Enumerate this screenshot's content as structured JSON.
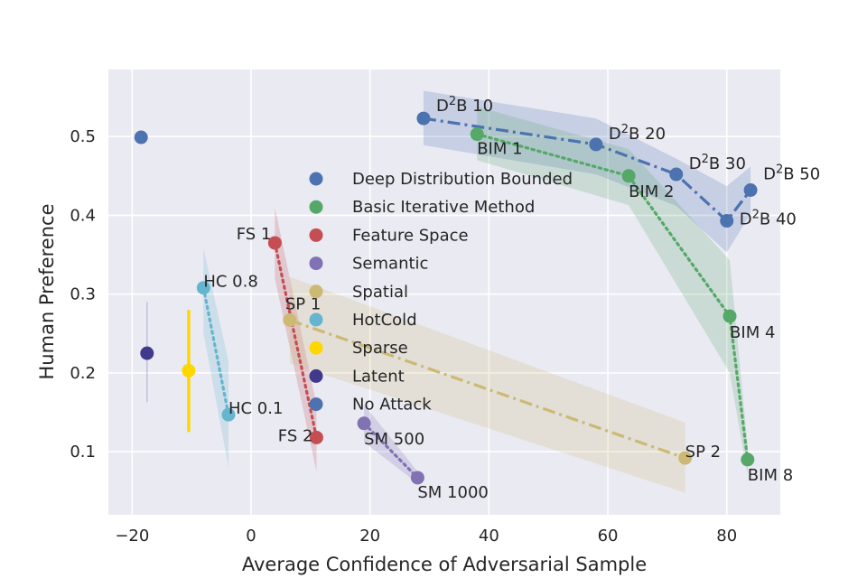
{
  "chart_data": {
    "type": "scatter",
    "title": "",
    "xlabel": "Average Confidence of Adversarial Sample",
    "ylabel": "Human Preference",
    "xlim": [
      -24,
      89
    ],
    "ylim": [
      0.02,
      0.585
    ],
    "xticks": [
      -20,
      0,
      20,
      40,
      60,
      80
    ],
    "yticks": [
      0.1,
      0.2,
      0.3,
      0.4,
      0.5
    ],
    "xtick_labels": [
      "−20",
      "0",
      "20",
      "40",
      "60",
      "80"
    ],
    "ytick_labels": [
      "0.1",
      "0.2",
      "0.3",
      "0.4",
      "0.5"
    ],
    "grid": true,
    "background": "#EAEAF2",
    "legend_position": "center",
    "series": [
      {
        "name": "Deep Distribution Bounded",
        "color": "#4C72B0",
        "line_style": "dashdot",
        "points": [
          {
            "x": 29,
            "y": 0.523,
            "label": "D²B 10",
            "lo": 0.489,
            "hi": 0.558
          },
          {
            "x": 58,
            "y": 0.49,
            "label": "D²B 20",
            "lo": 0.452,
            "hi": 0.523
          },
          {
            "x": 71.5,
            "y": 0.452,
            "label": "D²B 30",
            "lo": 0.412,
            "hi": 0.472
          },
          {
            "x": 80,
            "y": 0.393,
            "label": "D²B 40",
            "lo": 0.353,
            "hi": 0.437
          },
          {
            "x": 84,
            "y": 0.432,
            "label": "D²B 50",
            "lo": 0.402,
            "hi": 0.462
          }
        ]
      },
      {
        "name": "Basic Iterative Method",
        "color": "#55A868",
        "line_style": "dotted",
        "points": [
          {
            "x": 38,
            "y": 0.503,
            "label": "BIM 1",
            "lo": 0.47,
            "hi": 0.538
          },
          {
            "x": 63.5,
            "y": 0.45,
            "label": "BIM 2",
            "lo": 0.413,
            "hi": 0.484
          },
          {
            "x": 80.5,
            "y": 0.272,
            "label": "BIM 4",
            "lo": 0.2,
            "hi": 0.343
          },
          {
            "x": 83.5,
            "y": 0.09,
            "label": "BIM 8",
            "lo": 0.07,
            "hi": 0.108
          }
        ]
      },
      {
        "name": "Feature Space",
        "color": "#C44E52",
        "line_style": "dotted",
        "points": [
          {
            "x": 4,
            "y": 0.365,
            "label": "FS 1",
            "lo": 0.32,
            "hi": 0.41
          },
          {
            "x": 11,
            "y": 0.118,
            "label": "FS 2",
            "lo": 0.075,
            "hi": 0.16
          }
        ]
      },
      {
        "name": "Semantic",
        "color": "#8172B3",
        "line_style": "dotted",
        "points": [
          {
            "x": 19,
            "y": 0.136,
            "label": "SM 500",
            "lo": 0.112,
            "hi": 0.16
          },
          {
            "x": 28,
            "y": 0.067,
            "label": "SM 1000",
            "lo": 0.06,
            "hi": 0.075
          }
        ]
      },
      {
        "name": "Spatial",
        "color": "#CCB974",
        "line_style": "dashdot",
        "points": [
          {
            "x": 6.5,
            "y": 0.267,
            "label": "SP 1",
            "lo": 0.212,
            "hi": 0.322
          },
          {
            "x": 73,
            "y": 0.092,
            "label": "SP 2",
            "lo": 0.048,
            "hi": 0.137
          }
        ]
      },
      {
        "name": "HotCold",
        "color": "#64B5CD",
        "line_style": "dotted",
        "points": [
          {
            "x": -8,
            "y": 0.308,
            "label": "HC 0.8",
            "lo": 0.25,
            "hi": 0.358
          },
          {
            "x": -3.8,
            "y": 0.147,
            "label": "HC 0.1",
            "lo": 0.08,
            "hi": 0.215
          }
        ]
      },
      {
        "name": "Sparse",
        "color": "#FFD700",
        "line_style": "none",
        "points": [
          {
            "x": -10.5,
            "y": 0.203,
            "label": "",
            "lo": 0.125,
            "hi": 0.28
          }
        ]
      },
      {
        "name": "Latent",
        "color": "#3F3A8C",
        "line_style": "none",
        "points": [
          {
            "x": -17.5,
            "y": 0.225,
            "label": "",
            "lo": 0.163,
            "hi": 0.29
          }
        ]
      },
      {
        "name": "No Attack",
        "color": "#4C72B0",
        "line_style": "none",
        "points": [
          {
            "x": -18.5,
            "y": 0.499,
            "label": ""
          }
        ]
      }
    ]
  }
}
